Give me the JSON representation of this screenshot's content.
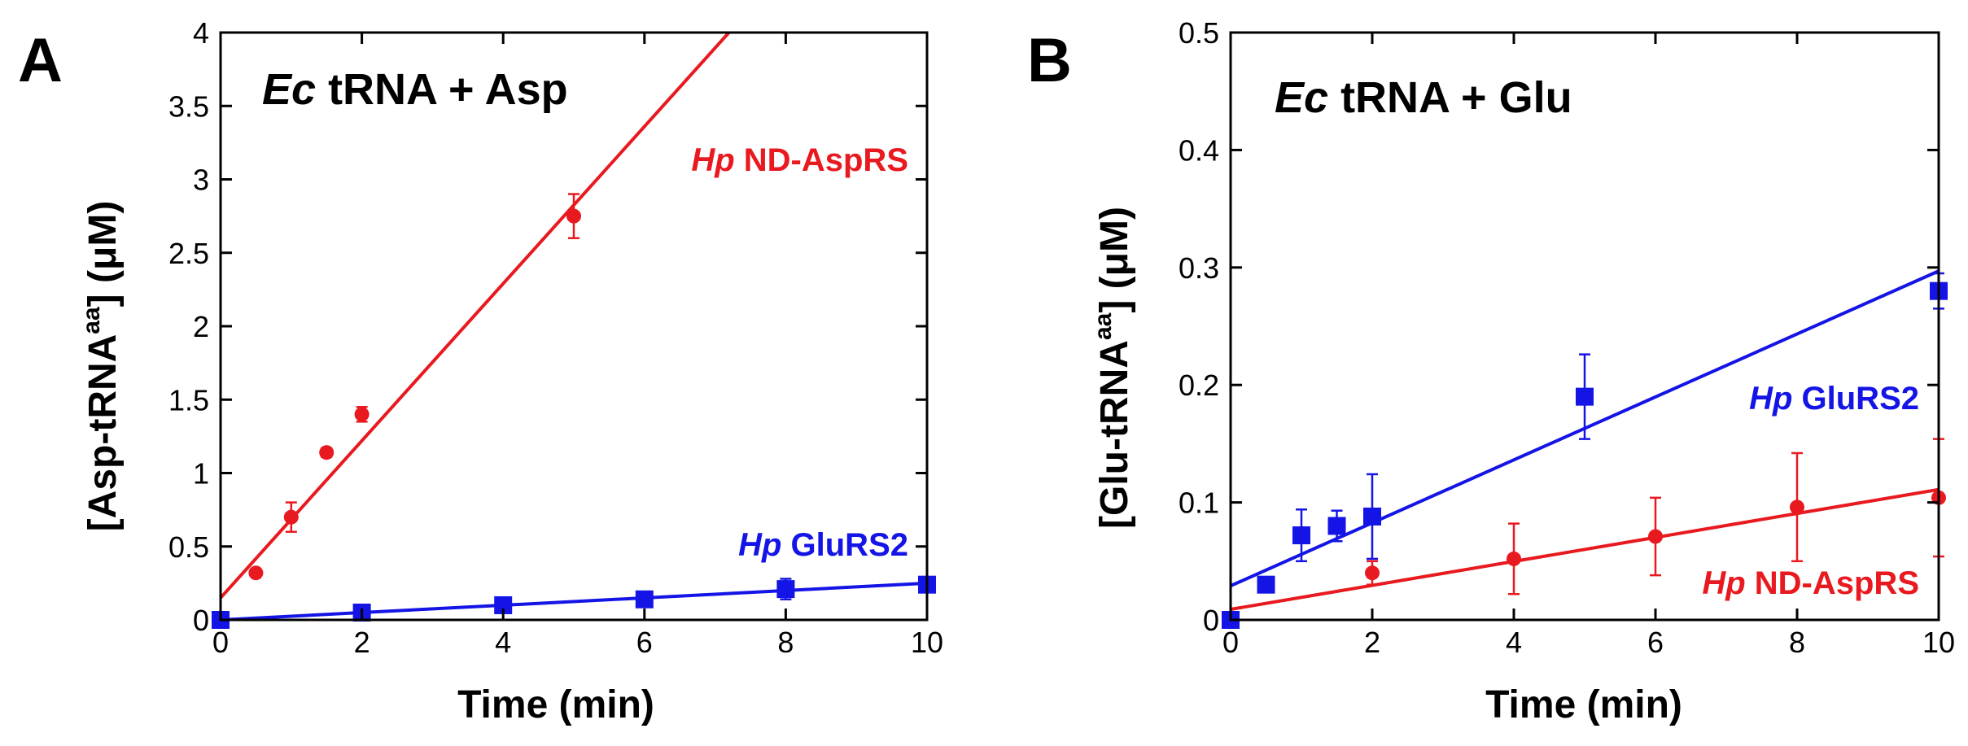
{
  "chart_data": [
    {
      "type": "scatter",
      "panel_letter": "A",
      "title_italic": "Ec",
      "title_rest": " tRNA + Asp",
      "xlabel": "Time (min)",
      "ylabel_prefix": "[Asp-tRNA",
      "ylabel_sup": "aa",
      "ylabel_suffix": "] (μM)",
      "xlim": [
        0,
        10
      ],
      "ylim": [
        0,
        4
      ],
      "xticks": [
        0,
        2,
        4,
        6,
        8,
        10
      ],
      "xtick_labels": [
        "0",
        "2",
        "4",
        "6",
        "8",
        "10"
      ],
      "yticks": [
        0,
        0.5,
        1,
        1.5,
        2,
        2.5,
        3,
        3.5,
        4
      ],
      "ytick_labels": [
        "0",
        "0.5",
        "1",
        "1.5",
        "2",
        "2.5",
        "3",
        "3.5",
        "4"
      ],
      "series": [
        {
          "name_italic": "Hp",
          "name_rest": " ND-AspRS",
          "color": "#e8191f",
          "marker": "circle",
          "x": [
            0,
            0.5,
            1,
            1.5,
            2,
            5
          ],
          "y": [
            0,
            0.32,
            0.7,
            1.14,
            1.4,
            2.75
          ],
          "err": [
            0,
            0.02,
            0.1,
            0.03,
            0.05,
            0.15
          ],
          "fit": {
            "slope": 0.535,
            "intercept": 0.15,
            "x_end": 7.2
          }
        },
        {
          "name_italic": "Hp",
          "name_rest": " GluRS2",
          "color": "#1414e6",
          "marker": "square",
          "x": [
            0,
            2,
            4,
            6,
            8,
            10
          ],
          "y": [
            0,
            0.05,
            0.1,
            0.14,
            0.21,
            0.24
          ],
          "err": [
            0,
            0.01,
            0.02,
            0.02,
            0.07,
            0.03
          ],
          "fit": {
            "slope": 0.025,
            "intercept": 0.0,
            "x_end": 10
          }
        }
      ]
    },
    {
      "type": "scatter",
      "panel_letter": "B",
      "title_italic": "Ec",
      "title_rest": " tRNA + Glu",
      "xlabel": "Time (min)",
      "ylabel_prefix": "[Glu-tRNA",
      "ylabel_sup": "aa",
      "ylabel_suffix": "] (μM)",
      "xlim": [
        0,
        10
      ],
      "ylim": [
        0,
        0.5
      ],
      "xticks": [
        0,
        2,
        4,
        6,
        8,
        10
      ],
      "xtick_labels": [
        "0",
        "2",
        "4",
        "6",
        "8",
        "10"
      ],
      "yticks": [
        0,
        0.1,
        0.2,
        0.3,
        0.4,
        0.5
      ],
      "ytick_labels": [
        "0",
        "0.1",
        "0.2",
        "0.3",
        "0.4",
        "0.5"
      ],
      "series": [
        {
          "name_italic": "Hp",
          "name_rest": " GluRS2",
          "color": "#1414e6",
          "marker": "square",
          "x": [
            0,
            0.5,
            1,
            1.5,
            2,
            5,
            10
          ],
          "y": [
            0,
            0.03,
            0.072,
            0.08,
            0.088,
            0.19,
            0.28
          ],
          "err": [
            0,
            0.003,
            0.022,
            0.013,
            0.036,
            0.036,
            0.015
          ],
          "fit": {
            "slope": 0.0268,
            "intercept": 0.029,
            "x_end": 10
          }
        },
        {
          "name_italic": "Hp",
          "name_rest": " ND-AspRS",
          "color": "#e8191f",
          "marker": "circle",
          "x": [
            2,
            4,
            6,
            8,
            10
          ],
          "y": [
            0.04,
            0.052,
            0.071,
            0.096,
            0.104
          ],
          "err": [
            0.01,
            0.03,
            0.033,
            0.046,
            0.05
          ],
          "fit": {
            "slope": 0.0102,
            "intercept": 0.009,
            "x_end": 10
          }
        }
      ]
    }
  ]
}
